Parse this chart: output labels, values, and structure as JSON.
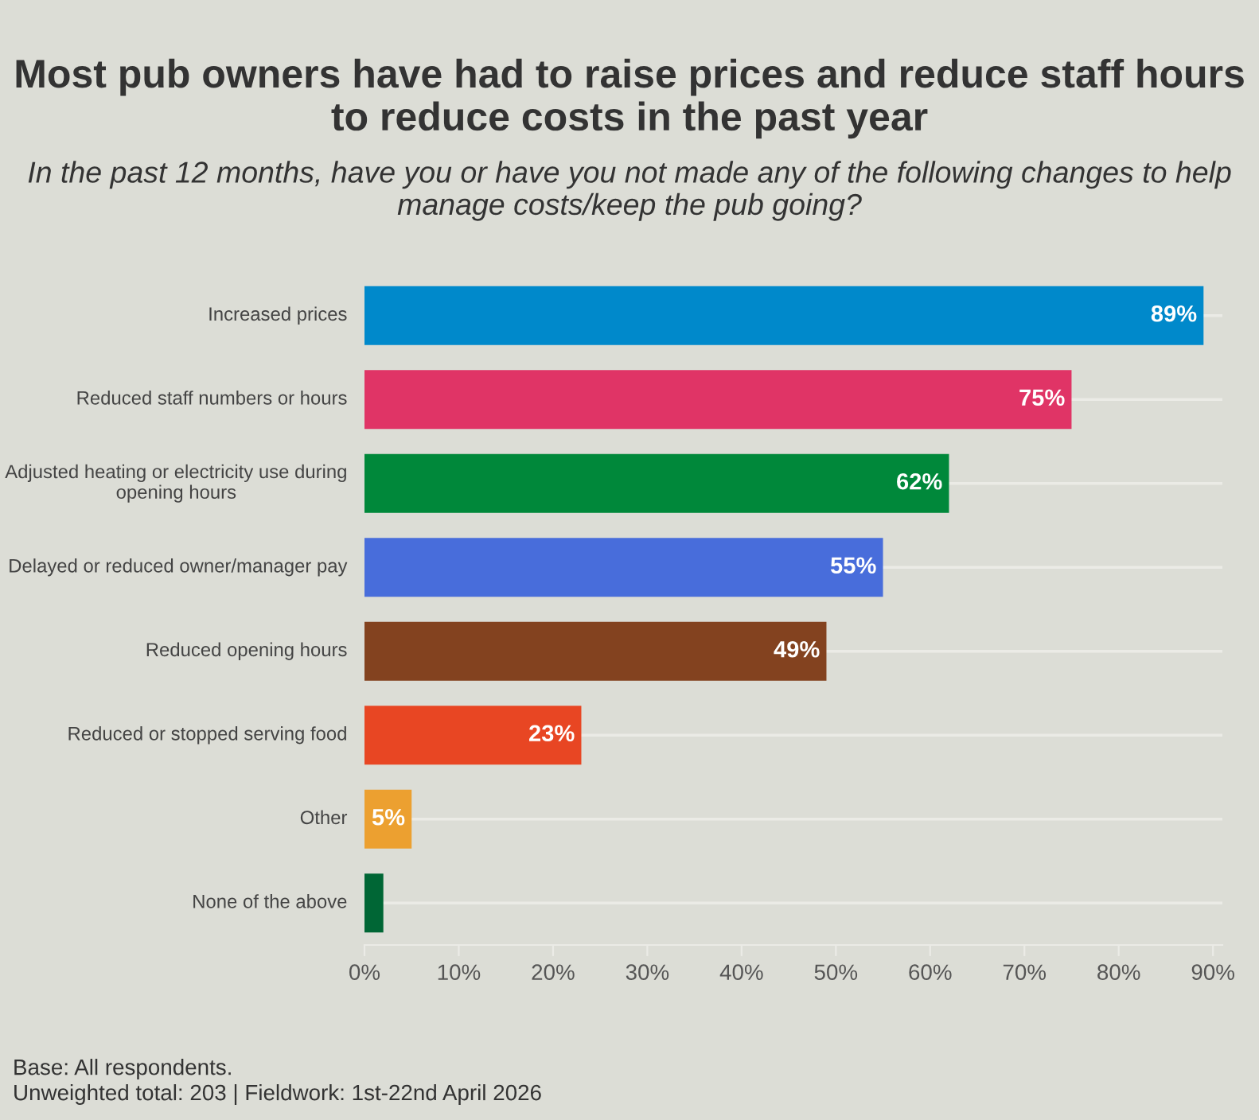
{
  "chart_data": {
    "type": "bar",
    "orientation": "horizontal",
    "title": "Most pub owners have had to raise prices and reduce staff hours to reduce costs in the past year",
    "subtitle": "In the past 12 months, have you or have you not made any of the following changes to help manage costs/keep the pub going?",
    "categories": [
      "Increased prices",
      "Reduced staff numbers or hours",
      "Adjusted heating or electricity use during opening hours",
      "Delayed or reduced owner/manager pay",
      "Reduced opening hours",
      "Reduced or stopped serving food",
      "Other",
      "None of the above"
    ],
    "values": [
      89,
      75,
      62,
      55,
      49,
      23,
      5,
      2
    ],
    "value_labels": [
      "89%",
      "75%",
      "62%",
      "55%",
      "49%",
      "23%",
      "5%",
      null
    ],
    "colors": [
      "#0089cb",
      "#e03466",
      "#00883a",
      "#486ddb",
      "#83421f",
      "#e84623",
      "#eca030",
      "#006635"
    ],
    "xlim": [
      0,
      91
    ],
    "xticks": [
      {
        "value": 0,
        "label": "0%"
      },
      {
        "value": 10,
        "label": "10%"
      },
      {
        "value": 20,
        "label": "20%"
      },
      {
        "value": 30,
        "label": "30%"
      },
      {
        "value": 40,
        "label": "40%"
      },
      {
        "value": 50,
        "label": "50%"
      },
      {
        "value": 60,
        "label": "60%"
      },
      {
        "value": 70,
        "label": "70%"
      },
      {
        "value": 80,
        "label": "80%"
      },
      {
        "value": 90,
        "label": "90%"
      }
    ],
    "grid": "y",
    "legend": false,
    "annotations": [
      "Base: All respondents.",
      "Unweighted total: 203 | Fieldwork: 1st-22nd April 2026"
    ]
  }
}
